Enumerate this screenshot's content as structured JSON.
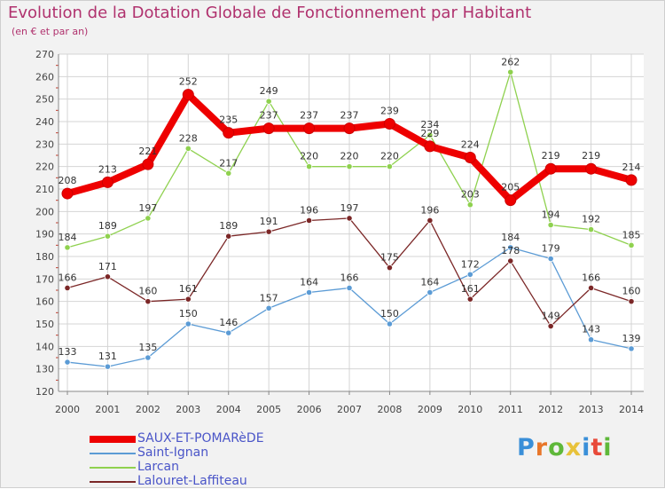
{
  "header": {
    "title": "Evolution de la Dotation Globale de Fonctionnement par Habitant",
    "subtitle": "(en € et par an)"
  },
  "logo": {
    "text": "Proxiti",
    "colors": [
      "#3a8fd8",
      "#e8762a",
      "#5fb83a",
      "#e8c23a",
      "#3a8fd8",
      "#e84a3a",
      "#5fb83a"
    ]
  },
  "chart_data": {
    "type": "line",
    "title": "Evolution de la Dotation Globale de Fonctionnement par Habitant",
    "subtitle": "(en € et par an)",
    "x": [
      "2000",
      "2001",
      "2002",
      "2003",
      "2004",
      "2005",
      "2006",
      "2007",
      "2008",
      "2009",
      "2010",
      "2011",
      "2012",
      "2013",
      "2014"
    ],
    "ylim": [
      120,
      270
    ],
    "yticks": [
      120,
      130,
      140,
      150,
      160,
      170,
      180,
      190,
      200,
      210,
      220,
      230,
      240,
      250,
      260,
      270
    ],
    "grid": true,
    "legend_position": "bottom-left",
    "series": [
      {
        "name": "SAUX-ET-POMARèDE",
        "color": "#ee0000",
        "values": [
          208,
          213,
          221,
          252,
          235,
          237,
          237,
          237,
          239,
          229,
          224,
          205,
          219,
          219,
          214
        ]
      },
      {
        "name": "Saint-Ignan",
        "color": "#5b9bd5",
        "values": [
          133,
          131,
          135,
          150,
          146,
          157,
          164,
          166,
          150,
          164,
          172,
          184,
          179,
          143,
          139
        ]
      },
      {
        "name": "Larcan",
        "color": "#8fd14f",
        "values": [
          184,
          189,
          197,
          228,
          217,
          249,
          220,
          220,
          220,
          234,
          203,
          262,
          194,
          192,
          185
        ]
      },
      {
        "name": "Lalouret-Laffiteau",
        "color": "#7b2727",
        "values": [
          166,
          171,
          160,
          161,
          189,
          191,
          196,
          197,
          175,
          196,
          161,
          178,
          149,
          166,
          160
        ]
      }
    ]
  }
}
